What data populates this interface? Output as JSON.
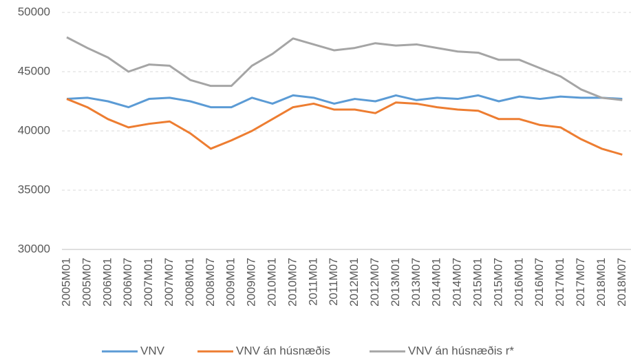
{
  "chart_data": {
    "type": "line",
    "categories": [
      "2005M01",
      "2005M07",
      "2006M01",
      "2006M07",
      "2007M01",
      "2007M07",
      "2008M01",
      "2008M07",
      "2009M01",
      "2009M07",
      "2010M01",
      "2010M07",
      "2011M01",
      "2011M07",
      "2012M01",
      "2012M07",
      "2013M01",
      "2013M07",
      "2014M01",
      "2014M07",
      "2015M01",
      "2015M07",
      "2016M01",
      "2016M07",
      "2017M01",
      "2017M07",
      "2018M01",
      "2018M07"
    ],
    "series": [
      {
        "name": "VNV",
        "color": "#5b9bd5",
        "values": [
          42700,
          42800,
          42500,
          42000,
          42700,
          42800,
          42500,
          42000,
          42000,
          42800,
          42300,
          43000,
          42800,
          42300,
          42700,
          42500,
          43000,
          42600,
          42800,
          42700,
          43000,
          42500,
          42900,
          42700,
          42900,
          42800,
          42800,
          42700
        ]
      },
      {
        "name": "VNV án húsnæðis",
        "color": "#ed7d31",
        "values": [
          42700,
          42000,
          41000,
          40300,
          40600,
          40800,
          39800,
          38500,
          39200,
          40000,
          41000,
          42000,
          42300,
          41800,
          41800,
          41500,
          42400,
          42300,
          42000,
          41800,
          41700,
          41000,
          41000,
          40500,
          40300,
          39300,
          38500,
          38000
        ]
      },
      {
        "name": "VNV án húsnæðis r*",
        "color": "#a5a5a5",
        "values": [
          47900,
          47000,
          46200,
          45000,
          45600,
          45500,
          44300,
          43800,
          43800,
          45500,
          46500,
          47800,
          47300,
          46800,
          47000,
          47400,
          47200,
          47300,
          47000,
          46700,
          46600,
          46000,
          46000,
          45300,
          44600,
          43500,
          42800,
          42600
        ]
      }
    ],
    "ylim": [
      30000,
      50000
    ],
    "yticks": [
      30000,
      35000,
      40000,
      45000,
      50000
    ],
    "grid": true
  }
}
